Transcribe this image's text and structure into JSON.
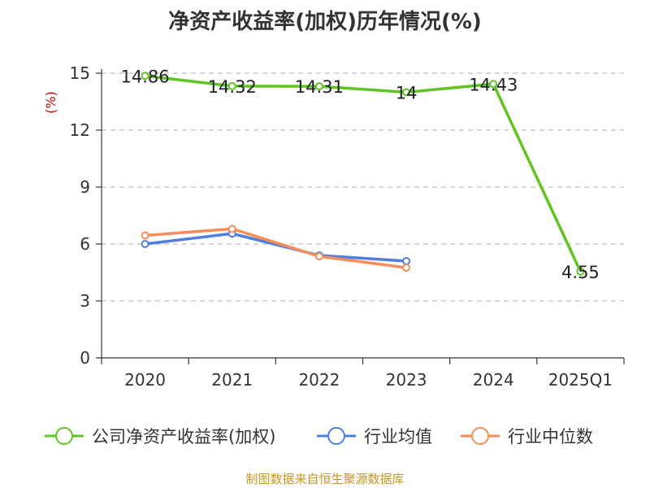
{
  "title": "净资产收益率(加权)历年情况(%)",
  "source": "制图数据来自恒生聚源数据库",
  "chart_data": {
    "type": "line",
    "categories": [
      "2020",
      "2021",
      "2022",
      "2023",
      "2024",
      "2025Q1"
    ],
    "ylabel": "(%)",
    "ylim": [
      0,
      15
    ],
    "yticks": [
      "0",
      "3",
      "6",
      "9",
      "12",
      "15"
    ],
    "grid": true,
    "legend_placement": "bottom",
    "series": [
      {
        "name": "公司净资产收益率(加权)",
        "color": "#5ec423",
        "values": [
          14.86,
          14.32,
          14.31,
          14.0,
          14.43,
          4.55
        ],
        "labels": [
          "14.86",
          "14.32",
          "14.31",
          "14",
          "14.43",
          "4.55"
        ]
      },
      {
        "name": "行业均值",
        "color": "#4f7fdc",
        "values": [
          6.0,
          6.55,
          5.4,
          5.1,
          null,
          null
        ]
      },
      {
        "name": "行业中位数",
        "color": "#f98d5a",
        "values": [
          6.45,
          6.8,
          5.35,
          4.75,
          null,
          null
        ]
      }
    ]
  }
}
